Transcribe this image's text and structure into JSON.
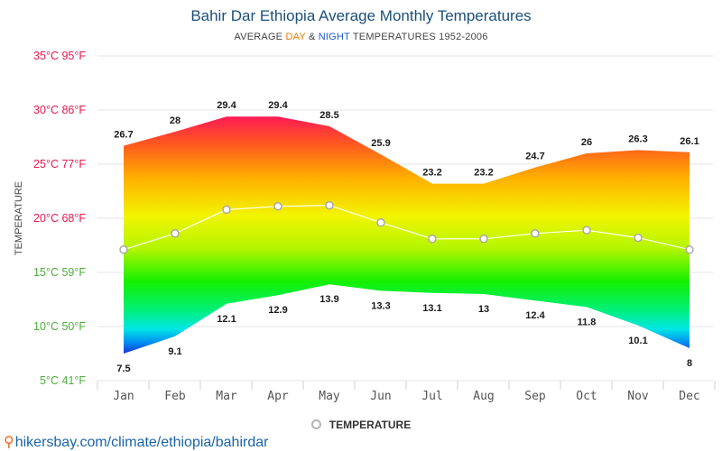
{
  "chart_data": {
    "type": "area",
    "title": "Bahir Dar Ethiopia Average Monthly Temperatures",
    "subtitle": {
      "prefix": "AVERAGE",
      "day": "DAY",
      "amp": "&",
      "night": "NIGHT",
      "suffix": "TEMPERATURES 1952-2006"
    },
    "ylabel": "TEMPERATURE",
    "ylim": [
      5,
      35
    ],
    "y_ticks": [
      {
        "value": 35,
        "label": "35°C 95°F",
        "color": "#e8174e"
      },
      {
        "value": 30,
        "label": "30°C 86°F",
        "color": "#e8174e"
      },
      {
        "value": 25,
        "label": "25°C 77°F",
        "color": "#e8174e"
      },
      {
        "value": 20,
        "label": "20°C 68°F",
        "color": "#e8174e"
      },
      {
        "value": 15,
        "label": "15°C 59°F",
        "color": "#4caf3a"
      },
      {
        "value": 10,
        "label": "10°C 50°F",
        "color": "#4caf3a"
      },
      {
        "value": 5,
        "label": "5°C 41°F",
        "color": "#4caf3a"
      }
    ],
    "categories": [
      "Jan",
      "Feb",
      "Mar",
      "Apr",
      "May",
      "Jun",
      "Jul",
      "Aug",
      "Sep",
      "Oct",
      "Nov",
      "Dec"
    ],
    "series": [
      {
        "name": "Day",
        "values": [
          26.7,
          28,
          29.4,
          29.4,
          28.5,
          25.9,
          23.2,
          23.2,
          24.7,
          26,
          26.3,
          26.1
        ]
      },
      {
        "name": "Night",
        "values": [
          7.5,
          9.1,
          12.1,
          12.9,
          13.9,
          13.3,
          13.1,
          13,
          12.4,
          11.8,
          10.1,
          8
        ]
      },
      {
        "name": "Temperature",
        "values": [
          17.1,
          18.6,
          20.8,
          21.1,
          21.2,
          19.6,
          18.1,
          18.1,
          18.6,
          18.9,
          18.2,
          17.1
        ]
      }
    ],
    "legend": "TEMPERATURE",
    "grid": true
  },
  "footer": {
    "pin_glyph": "⚲",
    "source_url": "hikersbay.com/climate/ethiopia/bahirdar"
  }
}
